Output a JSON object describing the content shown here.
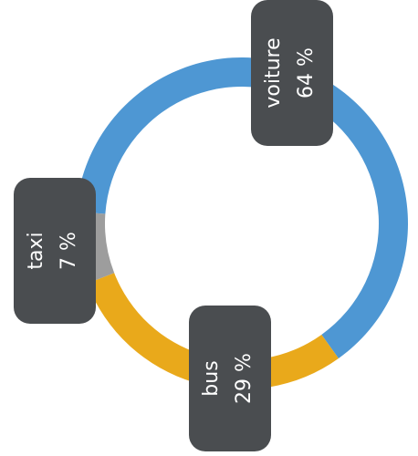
{
  "chart_data": {
    "type": "donut",
    "categories": [
      "voiture",
      "bus",
      "taxi"
    ],
    "values": [
      64,
      29,
      7
    ],
    "value_labels": [
      "64 %",
      "29 %",
      "7 %"
    ],
    "colors": [
      "#4e97d3",
      "#e9a91b",
      "#9d9d9d"
    ]
  }
}
